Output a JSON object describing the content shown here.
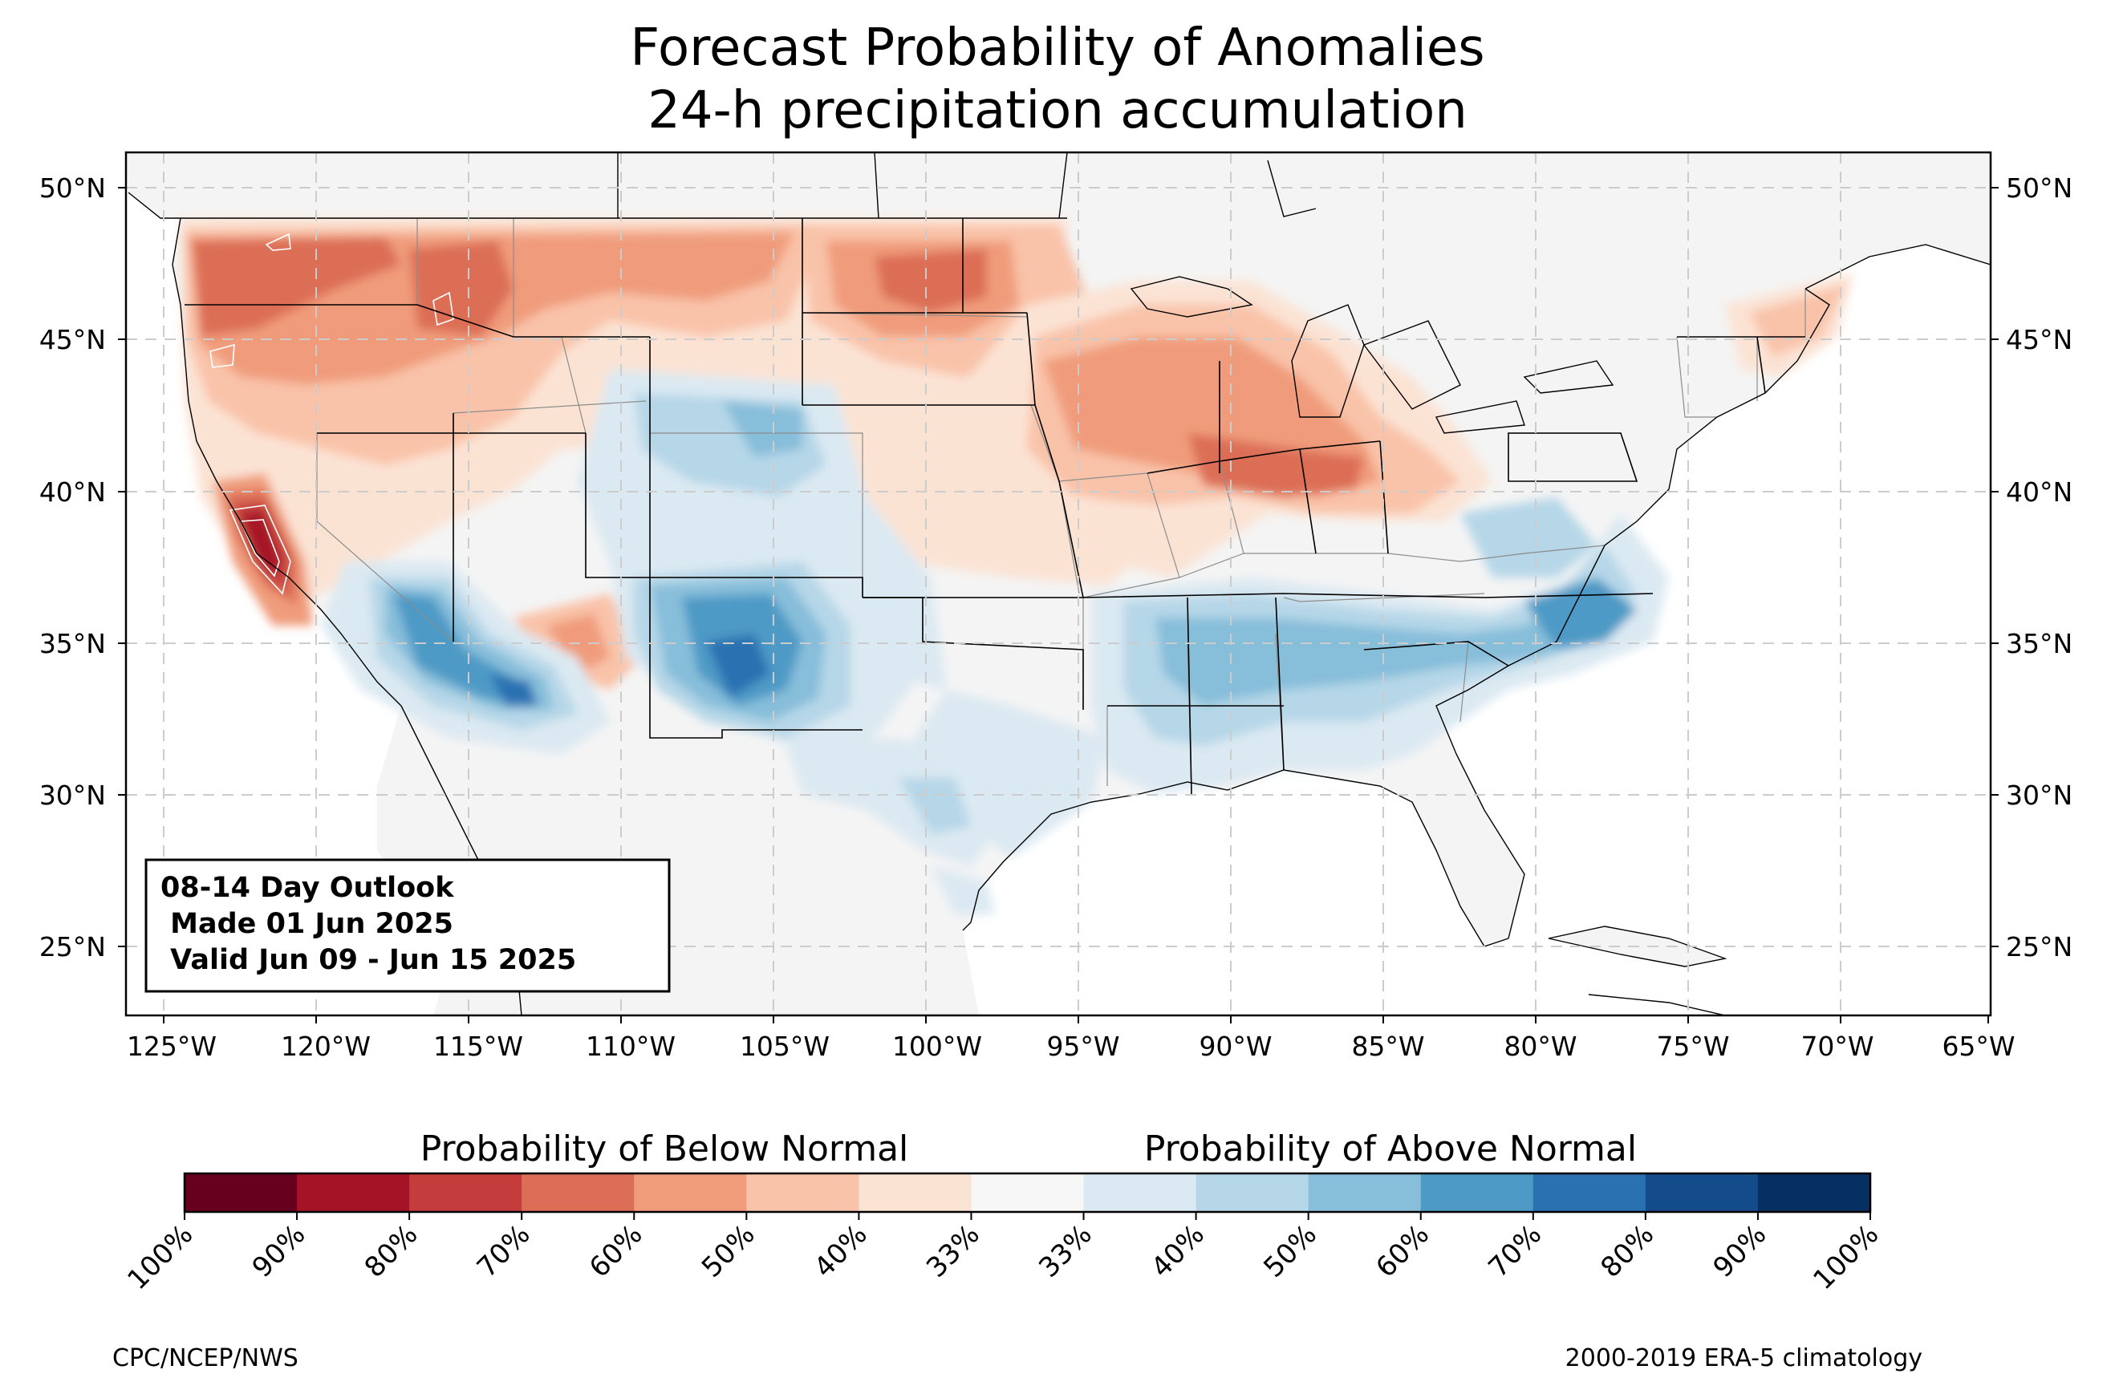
{
  "title": {
    "line1": "Forecast Probability of Anomalies",
    "line2": "24-h precipitation accumulation"
  },
  "map": {
    "lon_ticks": [
      "125°W",
      "120°W",
      "115°W",
      "110°W",
      "105°W",
      "100°W",
      "95°W",
      "90°W",
      "85°W",
      "80°W",
      "75°W",
      "70°W",
      "65°W"
    ],
    "lat_ticks": [
      "50°N",
      "45°N",
      "40°N",
      "35°N",
      "30°N",
      "25°N"
    ],
    "extent": {
      "lon_min": -126.3,
      "lon_max": -65.1,
      "lat_min": 22.8,
      "lat_max": 51.2
    },
    "background_land": "#f4f4f4",
    "gridline_color": "#cccccc"
  },
  "outlook_box": {
    "line1": "08-14 Day Outlook",
    "line2": " Made 01 Jun 2025",
    "line3": " Valid Jun 09 - Jun 15 2025"
  },
  "colorbar": {
    "below_label": "Probability of Below Normal",
    "above_label": "Probability of Above Normal",
    "tick_labels": [
      "100%",
      "90%",
      "80%",
      "70%",
      "60%",
      "50%",
      "40%",
      "33%",
      "33%",
      "40%",
      "50%",
      "60%",
      "70%",
      "80%",
      "90%",
      "100%"
    ],
    "colors": [
      "#67001f",
      "#a51327",
      "#c43c3c",
      "#dc6e57",
      "#f09c7b",
      "#f9c3a9",
      "#fbe3d4",
      "#f7f7f7",
      "#dbe9f2",
      "#b6d7e8",
      "#87beda",
      "#4e9ac6",
      "#2a71b2",
      "#144c8b",
      "#053061"
    ]
  },
  "credits": {
    "left": "CPC/NCEP/NWS",
    "right": "2000-2019 ERA-5 climatology"
  },
  "anomaly_regions": [
    {
      "name": "pacific-northwest-dry",
      "category": "below",
      "level": "60-70%"
    },
    {
      "name": "california-dry-core",
      "category": "below",
      "level": "80-90%"
    },
    {
      "name": "northern-plains-dry",
      "category": "below",
      "level": "50-60%"
    },
    {
      "name": "upper-midwest-dry",
      "category": "below",
      "level": "50-60%"
    },
    {
      "name": "southwest-wet",
      "category": "above",
      "level": "60-70%"
    },
    {
      "name": "new-mexico-wet",
      "category": "above",
      "level": "60-70%"
    },
    {
      "name": "southeast-wet",
      "category": "above",
      "level": "40-50%"
    },
    {
      "name": "carolinas-wet",
      "category": "above",
      "level": "60-70%"
    }
  ]
}
